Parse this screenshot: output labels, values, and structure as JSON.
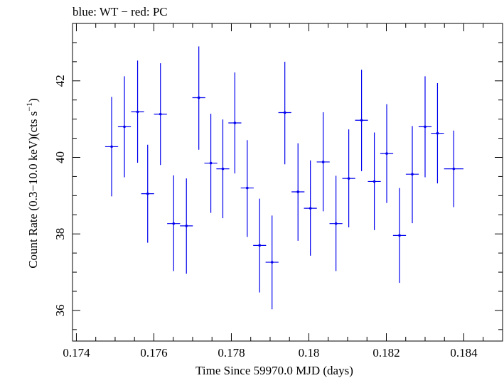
{
  "chart_data": {
    "type": "scatter",
    "title": "blue: WT − red: PC",
    "xlabel": "Time Since 59970.0 MJD (days)",
    "ylabel_main": "Count Rate (0.3−10.0 keV)(cts s",
    "ylabel_sup": "−1",
    "ylabel_end": ")",
    "xlim": [
      0.1739,
      0.185
    ],
    "ylim": [
      35.2,
      43.5
    ],
    "x_ticks": [
      0.174,
      0.176,
      0.178,
      0.18,
      0.182,
      0.184
    ],
    "x_tick_labels": [
      "0.174",
      "0.176",
      "0.178",
      "0.18",
      "0.182",
      "0.184"
    ],
    "y_ticks": [
      36,
      38,
      40,
      42
    ],
    "y_tick_labels": [
      "36",
      "38",
      "40",
      "42"
    ],
    "grid": false,
    "series": [
      {
        "color": "#0000ee",
        "points": [
          {
            "x": 0.17491,
            "y": 40.28,
            "xerr": 0.000167,
            "yerr_low": 1.3,
            "yerr_high": 1.3
          },
          {
            "x": 0.17524,
            "y": 40.8,
            "xerr": 0.000167,
            "yerr_low": 1.32,
            "yerr_high": 1.32
          },
          {
            "x": 0.17558,
            "y": 41.19,
            "xerr": 0.000167,
            "yerr_low": 1.33,
            "yerr_high": 1.34
          },
          {
            "x": 0.17584,
            "y": 39.05,
            "xerr": 0.000167,
            "yerr_low": 1.28,
            "yerr_high": 1.28
          },
          {
            "x": 0.17617,
            "y": 41.13,
            "xerr": 0.000167,
            "yerr_low": 1.33,
            "yerr_high": 1.33
          },
          {
            "x": 0.17651,
            "y": 38.27,
            "xerr": 0.000167,
            "yerr_low": 1.24,
            "yerr_high": 1.26
          },
          {
            "x": 0.17684,
            "y": 38.21,
            "xerr": 0.000167,
            "yerr_low": 1.25,
            "yerr_high": 1.24
          },
          {
            "x": 0.17716,
            "y": 41.56,
            "xerr": 0.000167,
            "yerr_low": 1.36,
            "yerr_high": 1.34
          },
          {
            "x": 0.17747,
            "y": 39.85,
            "xerr": 0.000167,
            "yerr_low": 1.3,
            "yerr_high": 1.29
          },
          {
            "x": 0.17778,
            "y": 39.7,
            "xerr": 0.000167,
            "yerr_low": 1.29,
            "yerr_high": 1.29
          },
          {
            "x": 0.17809,
            "y": 40.9,
            "xerr": 0.000167,
            "yerr_low": 1.32,
            "yerr_high": 1.32
          },
          {
            "x": 0.17841,
            "y": 39.2,
            "xerr": 0.000167,
            "yerr_low": 1.28,
            "yerr_high": 1.25
          },
          {
            "x": 0.17873,
            "y": 37.7,
            "xerr": 0.000167,
            "yerr_low": 1.23,
            "yerr_high": 1.22
          },
          {
            "x": 0.17905,
            "y": 37.26,
            "xerr": 0.000167,
            "yerr_low": 1.23,
            "yerr_high": 1.22
          },
          {
            "x": 0.17938,
            "y": 41.17,
            "xerr": 0.000167,
            "yerr_low": 1.35,
            "yerr_high": 1.33
          },
          {
            "x": 0.17972,
            "y": 39.1,
            "xerr": 0.000167,
            "yerr_low": 1.28,
            "yerr_high": 1.27
          },
          {
            "x": 0.18004,
            "y": 38.67,
            "xerr": 0.000167,
            "yerr_low": 1.24,
            "yerr_high": 1.25
          },
          {
            "x": 0.18037,
            "y": 39.88,
            "xerr": 0.000167,
            "yerr_low": 1.29,
            "yerr_high": 1.3
          },
          {
            "x": 0.1807,
            "y": 38.27,
            "xerr": 0.000167,
            "yerr_low": 1.24,
            "yerr_high": 1.25
          },
          {
            "x": 0.18103,
            "y": 39.45,
            "xerr": 0.000167,
            "yerr_low": 1.28,
            "yerr_high": 1.28
          },
          {
            "x": 0.18136,
            "y": 40.97,
            "xerr": 0.000167,
            "yerr_low": 1.33,
            "yerr_high": 1.32
          },
          {
            "x": 0.18169,
            "y": 39.37,
            "xerr": 0.000167,
            "yerr_low": 1.27,
            "yerr_high": 1.28
          },
          {
            "x": 0.18201,
            "y": 40.1,
            "xerr": 0.000167,
            "yerr_low": 1.29,
            "yerr_high": 1.29
          },
          {
            "x": 0.18234,
            "y": 37.96,
            "xerr": 0.000167,
            "yerr_low": 1.24,
            "yerr_high": 1.24
          },
          {
            "x": 0.18267,
            "y": 39.56,
            "xerr": 0.000167,
            "yerr_low": 1.28,
            "yerr_high": 1.26
          },
          {
            "x": 0.183,
            "y": 40.8,
            "xerr": 0.000167,
            "yerr_low": 1.32,
            "yerr_high": 1.32
          },
          {
            "x": 0.18332,
            "y": 40.63,
            "xerr": 0.000167,
            "yerr_low": 1.31,
            "yerr_high": 1.31
          },
          {
            "x": 0.18374,
            "y": 39.7,
            "xerr": 0.00025,
            "yerr_low": 1.0,
            "yerr_high": 1.0
          }
        ]
      }
    ]
  }
}
